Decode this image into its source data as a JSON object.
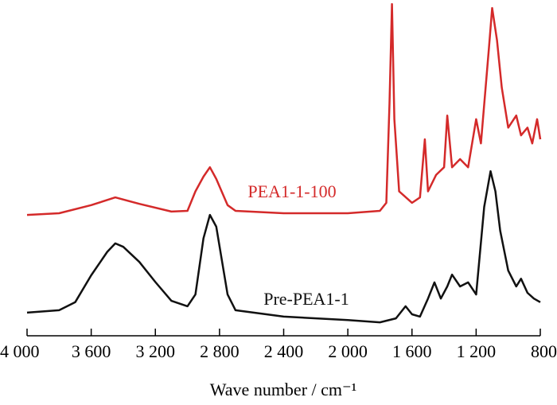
{
  "chart_data": {
    "type": "line",
    "xlabel": "Wave number / cm⁻¹",
    "xlim": [
      4000,
      800
    ],
    "xticks": [
      {
        "value": 4000,
        "label": "4 000"
      },
      {
        "value": 3600,
        "label": "3 600"
      },
      {
        "value": 3200,
        "label": "3 200"
      },
      {
        "value": 2800,
        "label": "2 800"
      },
      {
        "value": 2400,
        "label": "2 400"
      },
      {
        "value": 2000,
        "label": "2 000"
      },
      {
        "value": 1600,
        "label": "1 600"
      },
      {
        "value": 1200,
        "label": "1 200"
      },
      800
    ],
    "ylim": [
      0,
      100
    ],
    "series": [
      {
        "name": "PEA1-1-100",
        "color": "#d42a2a",
        "x": [
          4000,
          3800,
          3600,
          3450,
          3300,
          3100,
          3000,
          2950,
          2900,
          2860,
          2820,
          2750,
          2700,
          2400,
          2000,
          1800,
          1760,
          1740,
          1725,
          1710,
          1680,
          1600,
          1550,
          1520,
          1500,
          1450,
          1400,
          1380,
          1350,
          1300,
          1250,
          1200,
          1170,
          1120,
          1100,
          1070,
          1040,
          1000,
          950,
          920,
          880,
          850,
          820,
          800
        ],
        "values": [
          36,
          36.5,
          38.9,
          41.2,
          39.3,
          37,
          37.2,
          43,
          47.4,
          50.2,
          46.7,
          38.9,
          37.2,
          36.5,
          36.5,
          37.2,
          39.6,
          69.2,
          98.8,
          64.5,
          43,
          39.6,
          41.2,
          58.5,
          43,
          47.9,
          50.2,
          65.6,
          50.2,
          52.6,
          50.2,
          64.5,
          57.3,
          85.8,
          97.6,
          88,
          73.9,
          62,
          65.6,
          59.7,
          62,
          57.3,
          64.5,
          58.5
        ]
      },
      {
        "name": "Pre-PEA1-1",
        "color": "#111111",
        "x": [
          4000,
          3800,
          3700,
          3600,
          3500,
          3450,
          3400,
          3300,
          3200,
          3100,
          3000,
          2950,
          2900,
          2860,
          2820,
          2750,
          2700,
          2400,
          2000,
          1800,
          1700,
          1640,
          1600,
          1550,
          1500,
          1460,
          1420,
          1380,
          1350,
          1300,
          1250,
          1200,
          1150,
          1110,
          1080,
          1050,
          1000,
          950,
          920,
          880,
          840,
          800
        ],
        "values": [
          6.9,
          7.6,
          10,
          18,
          25,
          27.5,
          26.5,
          22,
          16,
          10.4,
          8.8,
          12.3,
          29,
          36,
          32.5,
          12.3,
          7.6,
          5.7,
          4.7,
          4,
          5.2,
          8.8,
          6.4,
          5.7,
          11.1,
          15.9,
          11.1,
          14.7,
          18.2,
          14.7,
          15.9,
          12.3,
          38.4,
          49,
          43,
          31.3,
          19.4,
          14.7,
          17,
          12.8,
          11.1,
          10
        ]
      }
    ]
  }
}
